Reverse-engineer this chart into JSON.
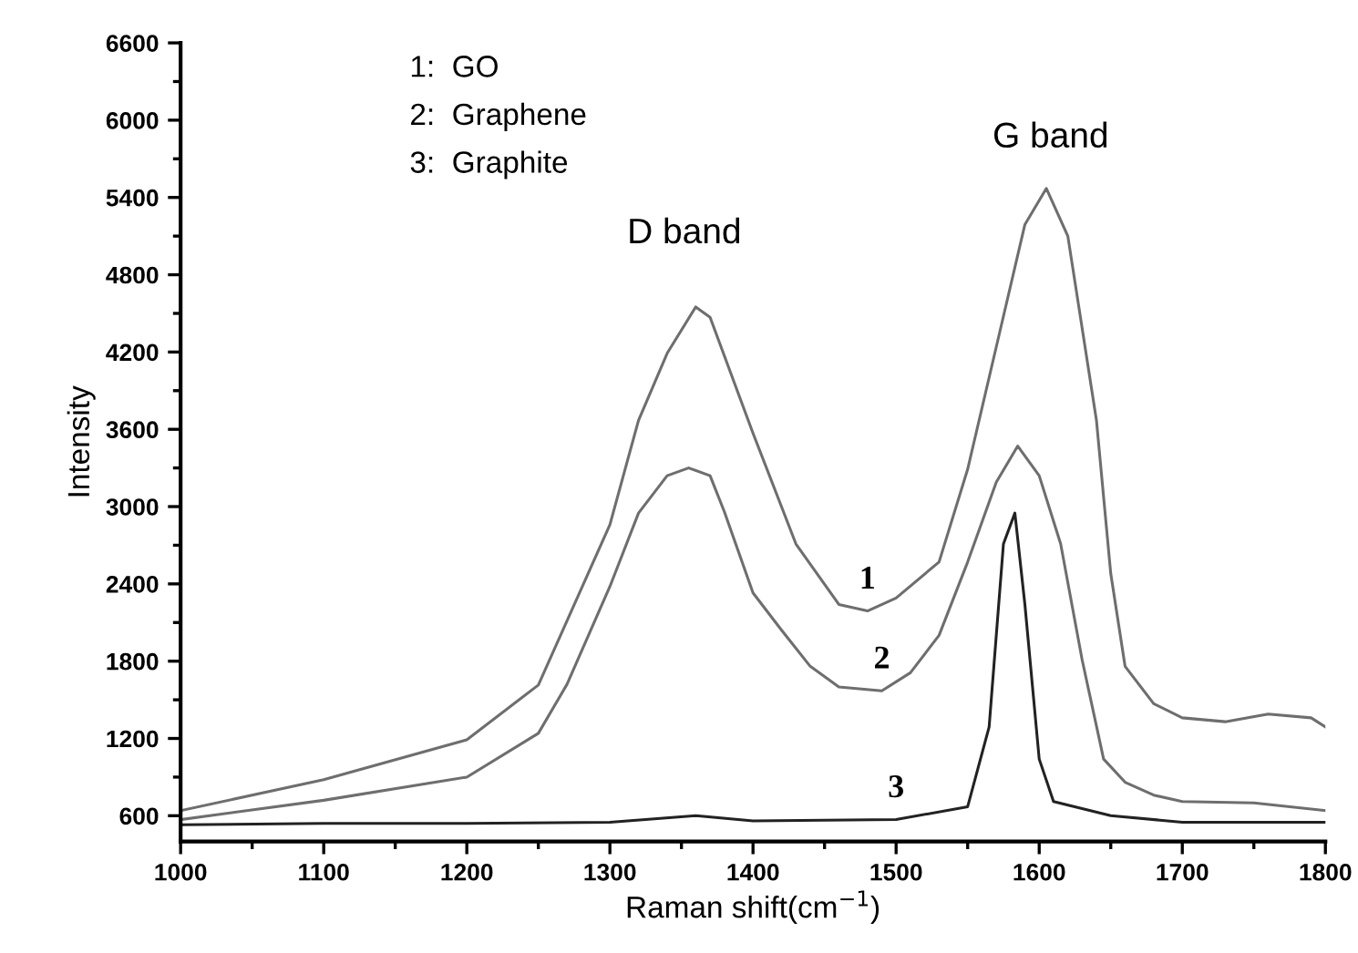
{
  "chart_data": {
    "type": "line",
    "xlabel": "Raman shift(cm$^{−1}$)",
    "ylabel": "Intensity",
    "xlim": [
      1000,
      1800
    ],
    "xticks": [
      1000,
      1100,
      1200,
      1300,
      1400,
      1500,
      1600,
      1700,
      1800
    ],
    "ylim": [
      400,
      6600
    ],
    "yticks": [
      600,
      1200,
      1800,
      2400,
      3000,
      3600,
      4200,
      4800,
      5400,
      6000,
      6600
    ],
    "grid": false,
    "marker": "none",
    "line_style": "solid",
    "series": [
      {
        "name": "1",
        "color": "#6e6e6e",
        "x": [
          1000,
          1100,
          1200,
          1250,
          1300,
          1320,
          1340,
          1360,
          1370,
          1400,
          1430,
          1460,
          1480,
          1500,
          1530,
          1550,
          1570,
          1590,
          1605,
          1620,
          1640,
          1650,
          1660,
          1680,
          1700,
          1730,
          1760,
          1790,
          1800
        ],
        "values": [
          640,
          880,
          1190,
          1615,
          2860,
          3670,
          4190,
          4550,
          4470,
          3570,
          2710,
          2240,
          2190,
          2290,
          2570,
          3290,
          4240,
          5190,
          5470,
          5100,
          3670,
          2480,
          1760,
          1470,
          1360,
          1330,
          1390,
          1360,
          1290
        ]
      },
      {
        "name": "2",
        "color": "#6e6e6e",
        "x": [
          1000,
          1100,
          1200,
          1250,
          1270,
          1300,
          1320,
          1340,
          1355,
          1370,
          1380,
          1400,
          1420,
          1440,
          1460,
          1490,
          1510,
          1530,
          1550,
          1570,
          1585,
          1600,
          1615,
          1630,
          1645,
          1660,
          1680,
          1700,
          1750,
          1800
        ],
        "values": [
          570,
          720,
          900,
          1240,
          1620,
          2380,
          2950,
          3240,
          3300,
          3240,
          2960,
          2330,
          2040,
          1760,
          1600,
          1570,
          1710,
          2000,
          2570,
          3190,
          3470,
          3240,
          2710,
          1810,
          1040,
          860,
          760,
          710,
          700,
          640
        ]
      },
      {
        "name": "3",
        "color": "#222222",
        "x": [
          1000,
          1100,
          1200,
          1300,
          1360,
          1400,
          1500,
          1550,
          1565,
          1575,
          1583,
          1590,
          1600,
          1610,
          1650,
          1700,
          1800
        ],
        "values": [
          530,
          540,
          540,
          550,
          600,
          560,
          570,
          670,
          1290,
          2710,
          2950,
          2240,
          1040,
          710,
          600,
          550,
          550
        ]
      }
    ],
    "annotations": [
      "D band",
      "G band",
      "1:  GO",
      "2:  Graphene",
      "3:  Graphite"
    ]
  }
}
